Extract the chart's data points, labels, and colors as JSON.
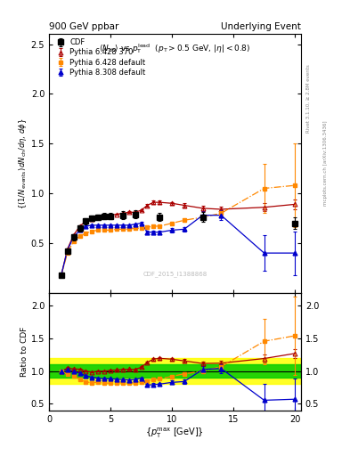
{
  "title_left": "900 GeV ppbar",
  "title_right": "Underlying Event",
  "subtitle": "<N_{ch}> vs p_{T}^{lead} (p_{T} > 0.5 GeV, |\\eta| < 0.8)",
  "watermark": "CDF_2015_I1388868",
  "cdf_x": [
    1.0,
    1.5,
    2.0,
    2.5,
    3.0,
    3.5,
    4.0,
    4.5,
    5.0,
    6.0,
    7.0,
    9.0,
    12.5,
    20.0
  ],
  "cdf_y": [
    0.18,
    0.42,
    0.56,
    0.65,
    0.72,
    0.75,
    0.76,
    0.77,
    0.77,
    0.78,
    0.79,
    0.76,
    0.76,
    0.7
  ],
  "cdf_yerr": [
    0.02,
    0.03,
    0.03,
    0.03,
    0.03,
    0.03,
    0.03,
    0.03,
    0.03,
    0.04,
    0.04,
    0.04,
    0.05,
    0.06
  ],
  "py6370_x": [
    1.0,
    1.5,
    2.0,
    2.5,
    3.0,
    3.5,
    4.0,
    4.5,
    5.0,
    5.5,
    6.0,
    6.5,
    7.0,
    7.5,
    8.0,
    8.5,
    9.0,
    10.0,
    11.0,
    12.5,
    14.0,
    17.5,
    20.0
  ],
  "py6370_y": [
    0.18,
    0.44,
    0.58,
    0.67,
    0.72,
    0.74,
    0.76,
    0.77,
    0.78,
    0.79,
    0.8,
    0.81,
    0.81,
    0.83,
    0.88,
    0.91,
    0.91,
    0.9,
    0.88,
    0.85,
    0.84,
    0.86,
    0.89
  ],
  "py6370_yerr": [
    0.005,
    0.005,
    0.005,
    0.005,
    0.005,
    0.005,
    0.005,
    0.005,
    0.005,
    0.005,
    0.005,
    0.01,
    0.01,
    0.01,
    0.01,
    0.015,
    0.015,
    0.015,
    0.02,
    0.025,
    0.03,
    0.04,
    0.05
  ],
  "py6def_x": [
    1.0,
    1.5,
    2.0,
    2.5,
    3.0,
    3.5,
    4.0,
    4.5,
    5.0,
    5.5,
    6.0,
    6.5,
    7.0,
    7.5,
    8.0,
    8.5,
    9.0,
    10.0,
    11.0,
    12.5,
    14.0,
    17.5,
    20.0
  ],
  "py6def_y": [
    0.18,
    0.4,
    0.52,
    0.57,
    0.6,
    0.62,
    0.63,
    0.63,
    0.63,
    0.64,
    0.64,
    0.64,
    0.65,
    0.65,
    0.66,
    0.67,
    0.67,
    0.7,
    0.73,
    0.76,
    0.8,
    1.05,
    1.08
  ],
  "py6def_yerr": [
    0.005,
    0.005,
    0.005,
    0.005,
    0.005,
    0.005,
    0.005,
    0.005,
    0.005,
    0.005,
    0.005,
    0.005,
    0.005,
    0.005,
    0.005,
    0.01,
    0.01,
    0.01,
    0.015,
    0.02,
    0.03,
    0.25,
    0.42
  ],
  "py8def_x": [
    1.0,
    1.5,
    2.0,
    2.5,
    3.0,
    3.5,
    4.0,
    4.5,
    5.0,
    5.5,
    6.0,
    6.5,
    7.0,
    7.5,
    8.0,
    8.5,
    9.0,
    10.0,
    11.0,
    12.5,
    14.0,
    17.5,
    20.0
  ],
  "py8def_y": [
    0.18,
    0.43,
    0.56,
    0.63,
    0.67,
    0.68,
    0.68,
    0.68,
    0.68,
    0.68,
    0.68,
    0.68,
    0.69,
    0.7,
    0.61,
    0.61,
    0.61,
    0.63,
    0.64,
    0.78,
    0.78,
    0.4,
    0.4
  ],
  "py8def_yerr": [
    0.005,
    0.005,
    0.005,
    0.005,
    0.005,
    0.005,
    0.005,
    0.005,
    0.005,
    0.005,
    0.005,
    0.005,
    0.005,
    0.01,
    0.015,
    0.015,
    0.015,
    0.02,
    0.025,
    0.04,
    0.05,
    0.18,
    0.22
  ],
  "color_cdf": "#000000",
  "color_py6370": "#aa0000",
  "color_py6def": "#ff8800",
  "color_py8def": "#0000cc",
  "band_yellow_xmin": 0.5,
  "band_yellow_xmax": 20.5,
  "band_yellow_ymin": 0.8,
  "band_yellow_ymax": 1.2,
  "band_green_xmin": 0.5,
  "band_green_xmax": 20.5,
  "band_green_ymin": 0.9,
  "band_green_ymax": 1.1,
  "ylim_main": [
    0.0,
    2.6
  ],
  "ylim_ratio": [
    0.4,
    2.2
  ],
  "xlim": [
    0.5,
    20.5
  ],
  "yticks_main": [
    0.5,
    1.0,
    1.5,
    2.0,
    2.5
  ],
  "yticks_ratio": [
    0.5,
    1.0,
    1.5,
    2.0
  ],
  "xticks": [
    0,
    5,
    10,
    15,
    20
  ]
}
